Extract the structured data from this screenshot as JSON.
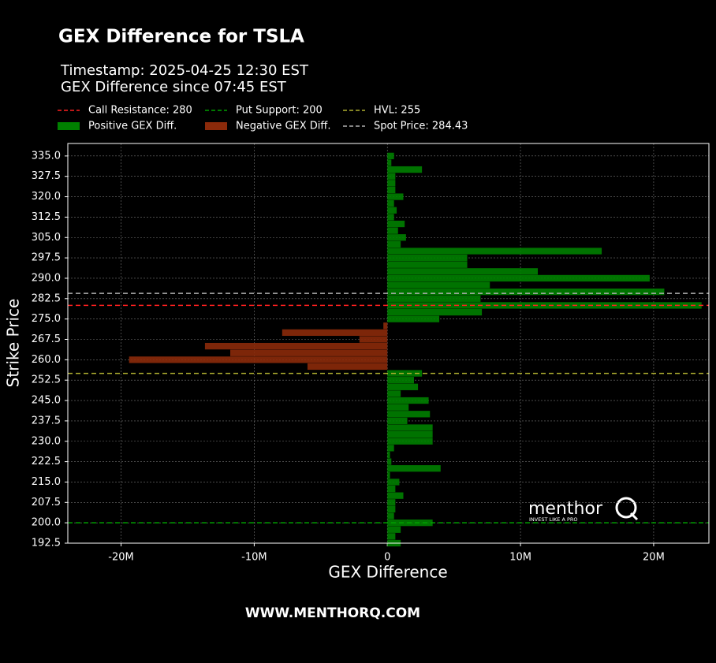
{
  "chart_data": {
    "type": "hbar",
    "title": "GEX Difference for TSLA",
    "subtitle": [
      "Timestamp: 2025-04-25 12:30 EST",
      "GEX Difference since 07:45 EST"
    ],
    "x_label": "GEX Difference",
    "y_label": "Strike Price",
    "footer": "WWW.MENTHORQ.COM",
    "logo": {
      "name": "menthor",
      "tagline": "INVEST LIKE A PRO"
    },
    "grid": true,
    "xlim": [
      -24000000,
      24150000
    ],
    "xticks": [
      {
        "value": -20000000,
        "label": "-20M"
      },
      {
        "value": -10000000,
        "label": "-10M"
      },
      {
        "value": 0,
        "label": "0"
      },
      {
        "value": 10000000,
        "label": "10M"
      },
      {
        "value": 20000000,
        "label": "20M"
      }
    ],
    "ylim": [
      192.5,
      339.6
    ],
    "yticks": [
      192.5,
      {
        "value": 200,
        "label": "200.0"
      },
      207.5,
      {
        "value": 215,
        "label": "215.0"
      },
      222.5,
      {
        "value": 230,
        "label": "230.0"
      },
      237.5,
      {
        "value": 245,
        "label": "245.0"
      },
      252.5,
      {
        "value": 260,
        "label": "260.0"
      },
      267.5,
      {
        "value": 275,
        "label": "275.0"
      },
      282.5,
      {
        "value": 290,
        "label": "290.0"
      },
      297.5,
      {
        "value": 305,
        "label": "305.0"
      },
      312.5,
      {
        "value": 320,
        "label": "320.0"
      },
      327.5,
      {
        "value": 335,
        "label": "335.0"
      }
    ],
    "y": [
      192.5,
      195,
      197.5,
      200,
      202.5,
      205,
      207.5,
      210,
      212.5,
      215,
      217.5,
      220,
      222.5,
      225,
      227.5,
      230,
      232.5,
      235,
      237.5,
      240,
      242.5,
      245,
      247.5,
      250,
      252.5,
      255,
      257.5,
      260,
      262.5,
      265,
      267.5,
      270,
      272.5,
      275,
      277.5,
      280,
      282.5,
      285,
      287.5,
      290,
      292.5,
      295,
      297.5,
      300,
      302.5,
      305,
      307.5,
      310,
      312.5,
      315,
      317.5,
      320,
      322.5,
      325,
      327.5,
      330,
      332.5,
      335
    ],
    "series": [
      {
        "name": "Positive GEX Diff.",
        "color": "#008000",
        "values": [
          1000000,
          600000,
          1000000,
          3400000,
          500000,
          600000,
          600000,
          1200000,
          600000,
          900000,
          200000,
          4000000,
          300000,
          200000,
          500000,
          3400000,
          3400000,
          3400000,
          1500000,
          3200000,
          1600000,
          3100000,
          1000000,
          2300000,
          2000000,
          2600000,
          null,
          null,
          null,
          null,
          null,
          null,
          null,
          3900000,
          7100000,
          23600000,
          7000000,
          20800000,
          7700000,
          19700000,
          11300000,
          6000000,
          6000000,
          16100000,
          1000000,
          1400000,
          800000,
          1300000,
          500000,
          700000,
          500000,
          1200000,
          600000,
          600000,
          600000,
          2600000,
          300000,
          500000
        ]
      },
      {
        "name": "Negative GEX Diff.",
        "color": "#8b2a0a",
        "values": [
          null,
          null,
          null,
          null,
          null,
          null,
          null,
          null,
          null,
          null,
          null,
          null,
          null,
          null,
          null,
          null,
          null,
          null,
          null,
          null,
          null,
          null,
          null,
          null,
          null,
          null,
          -6000000,
          -19400000,
          -11800000,
          -13700000,
          -2100000,
          -7900000,
          -300000,
          null,
          null,
          null,
          null,
          null,
          null,
          null,
          null,
          null,
          null,
          null,
          null,
          null,
          null,
          null,
          null,
          null,
          null,
          null,
          null,
          null,
          null,
          null,
          null,
          null
        ]
      }
    ],
    "reference_lines": [
      {
        "label": "Call Resistance: 280",
        "value": 280,
        "color": "#ff2020"
      },
      {
        "label": "Put Support: 200",
        "value": 200,
        "color": "#00a000"
      },
      {
        "label": "HVL: 255",
        "value": 255,
        "color": "#b0b030"
      },
      {
        "label": "Spot Price: 284.43",
        "value": 284.43,
        "color": "#b0b0b0"
      }
    ]
  }
}
